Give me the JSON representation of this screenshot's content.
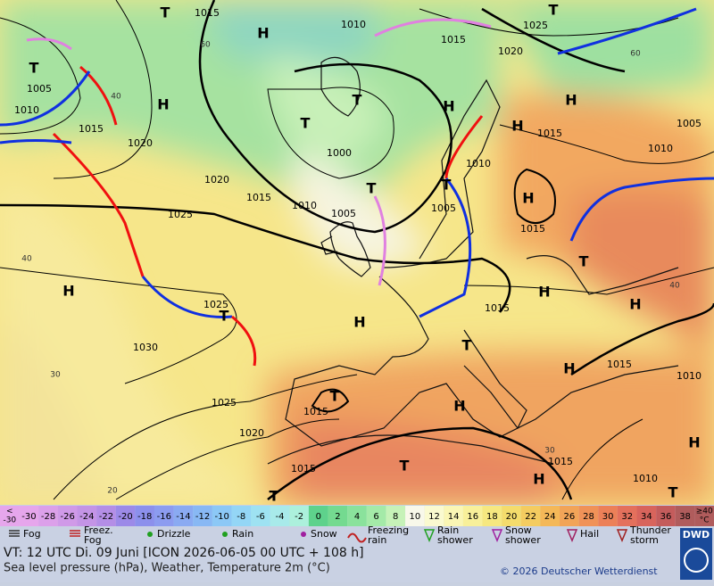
{
  "map": {
    "pressure_labels": [
      "1015",
      "1005",
      "1010",
      "1015",
      "1020",
      "1020",
      "1015",
      "1010",
      "1005",
      "1000",
      "1015",
      "1020",
      "1025",
      "1010",
      "1015",
      "1010",
      "1005",
      "1010",
      "1005",
      "1015",
      "1025",
      "1025",
      "1030",
      "1025",
      "1020",
      "1015",
      "1015",
      "1015",
      "1010",
      "1015",
      "1010",
      "1015"
    ],
    "centers": [
      "T",
      "H",
      "T",
      "T",
      "H",
      "T",
      "T",
      "H",
      "H",
      "T",
      "T",
      "H",
      "T",
      "H",
      "T",
      "H",
      "H",
      "H",
      "H",
      "T",
      "H",
      "T",
      "T",
      "H",
      "H",
      "T",
      "T",
      "H"
    ],
    "temperature_labels": [
      "60",
      "30",
      "40",
      "40",
      "30",
      "20",
      "60",
      "40"
    ]
  },
  "legend": {
    "scale_low": [
      "<",
      "-30"
    ],
    "scale": [
      {
        "label": "-30",
        "color": "#e6a6ec"
      },
      {
        "label": "-28",
        "color": "#dca0ea"
      },
      {
        "label": "-26",
        "color": "#d09ae8"
      },
      {
        "label": "-24",
        "color": "#c494e6"
      },
      {
        "label": "-22",
        "color": "#b48ee6"
      },
      {
        "label": "-20",
        "color": "#9c8ae8"
      },
      {
        "label": "-18",
        "color": "#8c90ec"
      },
      {
        "label": "-16",
        "color": "#8c9cf0"
      },
      {
        "label": "-14",
        "color": "#8aaaf2"
      },
      {
        "label": "-12",
        "color": "#88b8f4"
      },
      {
        "label": "-10",
        "color": "#8cc8f6"
      },
      {
        "label": "-8",
        "color": "#94d6f6"
      },
      {
        "label": "-6",
        "color": "#9ee2f2"
      },
      {
        "label": "-4",
        "color": "#a8eaea"
      },
      {
        "label": "-2",
        "color": "#acf0dc"
      },
      {
        "label": "0",
        "color": "#5ed28c"
      },
      {
        "label": "2",
        "color": "#74da90"
      },
      {
        "label": "4",
        "color": "#8ae29c"
      },
      {
        "label": "6",
        "color": "#a4eaa8"
      },
      {
        "label": "8",
        "color": "#c6f2b8"
      },
      {
        "label": "10",
        "color": "#f8f8ea"
      },
      {
        "label": "12",
        "color": "#fafad0"
      },
      {
        "label": "14",
        "color": "#faf6b4"
      },
      {
        "label": "16",
        "color": "#f8f09a"
      },
      {
        "label": "18",
        "color": "#f6e880"
      },
      {
        "label": "20",
        "color": "#f4dc6c"
      },
      {
        "label": "22",
        "color": "#f4cc60"
      },
      {
        "label": "24",
        "color": "#f4b858"
      },
      {
        "label": "26",
        "color": "#f2a458"
      },
      {
        "label": "28",
        "color": "#f09258"
      },
      {
        "label": "30",
        "color": "#ec8058"
      },
      {
        "label": "32",
        "color": "#e4705c"
      },
      {
        "label": "34",
        "color": "#d8645c"
      },
      {
        "label": "36",
        "color": "#c45c5c"
      },
      {
        "label": "38",
        "color": "#b05c5c"
      }
    ],
    "scale_high": [
      "≥40",
      "°C"
    ],
    "weather": [
      [
        "Fog"
      ],
      [
        "Freez.",
        "Fog"
      ],
      [
        "Drizzle"
      ],
      [
        "Rain"
      ],
      [
        "Snow"
      ],
      [
        "Freezing",
        "rain"
      ],
      [
        "Rain",
        "shower"
      ],
      [
        "Snow",
        "shower"
      ],
      [
        "Hail"
      ],
      [
        "Thunder",
        "storm"
      ]
    ]
  },
  "footer": {
    "valid_time": "VT: 12 UTC Di.  09 Juni [ICON 2026-06-05  00 UTC + 108 h]",
    "description": "Sea level pressure (hPa), Weather, Temperature 2m (°C)",
    "copyright": "© 2026 Deutscher Wetterdienst",
    "logo": "DWD"
  }
}
